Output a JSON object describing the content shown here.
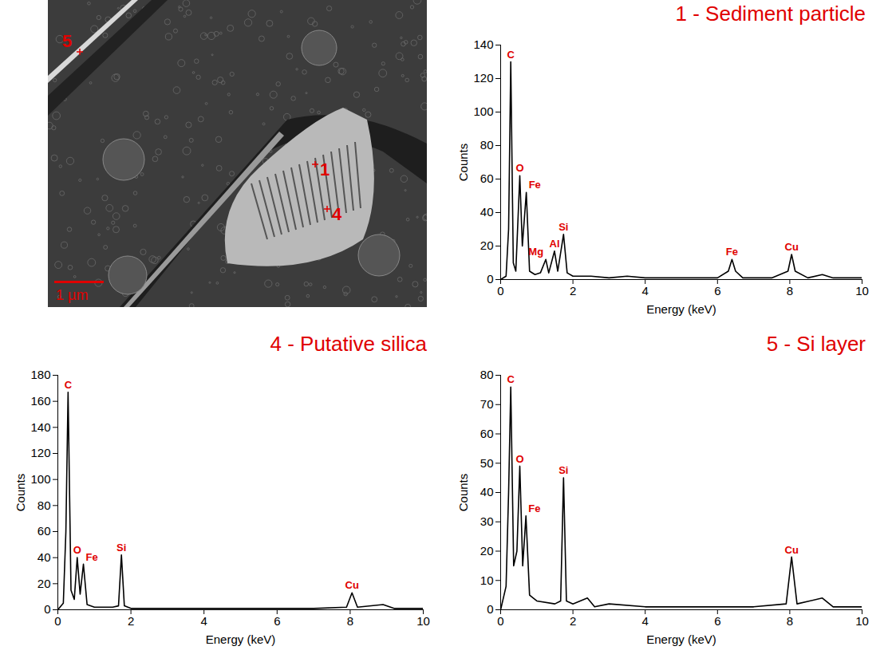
{
  "micrograph": {
    "markers": [
      "5",
      "1",
      "4"
    ],
    "scale_bar": "1 µm"
  },
  "chart_data": [
    {
      "type": "line",
      "title": "1 - Sediment particle",
      "xlabel": "Energy (keV)",
      "ylabel": "Counts",
      "color": "#000000",
      "xlim": [
        0,
        10
      ],
      "xticks": [
        0,
        2,
        4,
        6,
        8,
        10
      ],
      "ylim": [
        0,
        140
      ],
      "yticks": [
        0,
        20,
        40,
        60,
        80,
        100,
        120,
        140
      ],
      "x": [
        0,
        0.15,
        0.22,
        0.28,
        0.35,
        0.42,
        0.53,
        0.6,
        0.71,
        0.8,
        0.95,
        1.1,
        1.25,
        1.33,
        1.49,
        1.58,
        1.74,
        1.84,
        2.0,
        2.5,
        3.0,
        3.5,
        4.0,
        5.0,
        6.0,
        6.3,
        6.4,
        6.5,
        6.7,
        7.5,
        7.95,
        8.05,
        8.15,
        8.5,
        8.9,
        9.2,
        10
      ],
      "values": [
        0,
        2,
        30,
        130,
        10,
        5,
        62,
        20,
        52,
        5,
        3,
        4,
        12,
        4,
        17,
        5,
        27,
        4,
        2,
        2,
        1,
        2,
        1,
        1,
        1,
        5,
        12,
        5,
        1,
        1,
        5,
        15,
        5,
        1,
        3,
        1,
        1
      ],
      "peak_labels": [
        {
          "text": "C",
          "x": 0.28,
          "y": 130
        },
        {
          "text": "O",
          "x": 0.53,
          "y": 62
        },
        {
          "text": "Fe",
          "x": 0.71,
          "y": 52
        },
        {
          "text": "Mg",
          "x": 1.25,
          "y": 12
        },
        {
          "text": "Al",
          "x": 1.49,
          "y": 17
        },
        {
          "text": "Si",
          "x": 1.74,
          "y": 27
        },
        {
          "text": "Fe",
          "x": 6.4,
          "y": 12
        },
        {
          "text": "Cu",
          "x": 8.05,
          "y": 15
        }
      ]
    },
    {
      "type": "line",
      "title": "4 - Putative silica",
      "xlabel": "Energy (keV)",
      "ylabel": "Counts",
      "color": "#000000",
      "xlim": [
        0,
        10
      ],
      "xticks": [
        0,
        2,
        4,
        6,
        8,
        10
      ],
      "ylim": [
        0,
        180
      ],
      "yticks": [
        0,
        20,
        40,
        60,
        80,
        100,
        120,
        140,
        160,
        180
      ],
      "x": [
        0,
        0.15,
        0.22,
        0.28,
        0.36,
        0.45,
        0.53,
        0.61,
        0.7,
        0.8,
        1.0,
        1.5,
        1.66,
        1.74,
        1.82,
        2.0,
        3.0,
        4.0,
        5.0,
        6.0,
        7.0,
        7.9,
        8.05,
        8.2,
        8.9,
        9.2,
        10
      ],
      "values": [
        0,
        5,
        60,
        167,
        15,
        8,
        40,
        12,
        35,
        4,
        2,
        2,
        3,
        42,
        3,
        1,
        1,
        1,
        1,
        1,
        1,
        2,
        13,
        2,
        4,
        1,
        1
      ],
      "peak_labels": [
        {
          "text": "C",
          "x": 0.28,
          "y": 167
        },
        {
          "text": "O",
          "x": 0.53,
          "y": 40
        },
        {
          "text": "Fe",
          "x": 0.7,
          "y": 35
        },
        {
          "text": "Si",
          "x": 1.74,
          "y": 42
        },
        {
          "text": "Cu",
          "x": 8.05,
          "y": 13
        }
      ]
    },
    {
      "type": "line",
      "title": "5 - Si layer",
      "xlabel": "Energy (keV)",
      "ylabel": "Counts",
      "color": "#000000",
      "xlim": [
        0,
        10
      ],
      "xticks": [
        0,
        2,
        4,
        6,
        8,
        10
      ],
      "ylim": [
        0,
        80
      ],
      "yticks": [
        0,
        10,
        20,
        30,
        40,
        50,
        60,
        70,
        80
      ],
      "x": [
        0,
        0.15,
        0.22,
        0.28,
        0.36,
        0.45,
        0.53,
        0.61,
        0.7,
        0.8,
        1.0,
        1.5,
        1.66,
        1.74,
        1.82,
        2.0,
        2.4,
        2.6,
        3.0,
        4.0,
        5.0,
        6.0,
        7.0,
        7.9,
        8.05,
        8.2,
        8.9,
        9.2,
        10
      ],
      "values": [
        0,
        8,
        40,
        76,
        15,
        20,
        49,
        15,
        32,
        5,
        3,
        2,
        3,
        45,
        3,
        2,
        4,
        1,
        2,
        1,
        1,
        1,
        1,
        2,
        18,
        2,
        4,
        1,
        1
      ],
      "peak_labels": [
        {
          "text": "C",
          "x": 0.28,
          "y": 76
        },
        {
          "text": "O",
          "x": 0.53,
          "y": 49
        },
        {
          "text": "Fe",
          "x": 0.7,
          "y": 32
        },
        {
          "text": "Si",
          "x": 1.74,
          "y": 45
        },
        {
          "text": "Cu",
          "x": 8.05,
          "y": 18
        }
      ]
    }
  ]
}
